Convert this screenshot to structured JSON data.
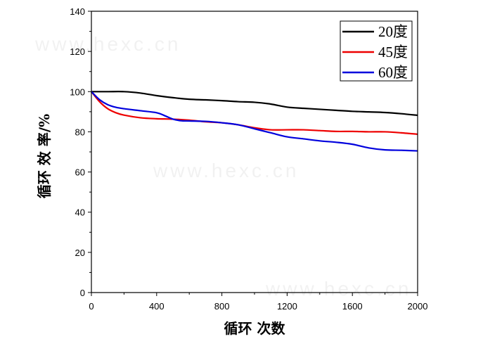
{
  "chart_data": {
    "type": "line",
    "xlabel": "循环 次数",
    "ylabel": "循环 效 率/%",
    "xlim": [
      0,
      2000
    ],
    "ylim": [
      0,
      140
    ],
    "x_ticks": [
      0,
      400,
      800,
      1200,
      1600,
      2000
    ],
    "y_ticks": [
      0,
      20,
      40,
      60,
      80,
      100,
      120,
      140
    ],
    "legend_position": "top-right",
    "grid": false,
    "watermark": "www.hexc.cn",
    "series": [
      {
        "name": "20度",
        "color": "#000000",
        "x": [
          0,
          100,
          200,
          300,
          400,
          500,
          600,
          700,
          800,
          900,
          1000,
          1100,
          1200,
          1300,
          1400,
          1500,
          1600,
          1700,
          1800,
          1900,
          2000
        ],
        "y": [
          100,
          100,
          100,
          99.3,
          98,
          97,
          96.2,
          95.9,
          95.5,
          95,
          94.7,
          93.8,
          92.3,
          91.7,
          91.2,
          90.7,
          90.2,
          89.9,
          89.6,
          89,
          88.2
        ]
      },
      {
        "name": "45度",
        "color": "#ee0000",
        "x": [
          0,
          50,
          100,
          150,
          200,
          300,
          400,
          500,
          600,
          700,
          800,
          900,
          1000,
          1100,
          1200,
          1300,
          1400,
          1500,
          1600,
          1700,
          1800,
          1900,
          2000
        ],
        "y": [
          100,
          95,
          91.5,
          89.5,
          88.3,
          87,
          86.5,
          86.3,
          85.8,
          85,
          84.5,
          83.5,
          82,
          81,
          81,
          81,
          80.6,
          80.2,
          80.2,
          80,
          80,
          79.5,
          78.8
        ]
      },
      {
        "name": "60度",
        "color": "#0000dd",
        "x": [
          0,
          50,
          100,
          150,
          200,
          300,
          400,
          450,
          500,
          550,
          600,
          700,
          800,
          900,
          1000,
          1100,
          1200,
          1300,
          1400,
          1500,
          1600,
          1700,
          1800,
          1900,
          2000
        ],
        "y": [
          100,
          96,
          93.5,
          92.2,
          91.5,
          90.5,
          89.5,
          88,
          86.3,
          85.5,
          85.4,
          85.2,
          84.5,
          83.5,
          81.5,
          79.5,
          77.5,
          76.5,
          75.5,
          74.8,
          73.8,
          72,
          71,
          70.8,
          70.5
        ]
      }
    ]
  }
}
